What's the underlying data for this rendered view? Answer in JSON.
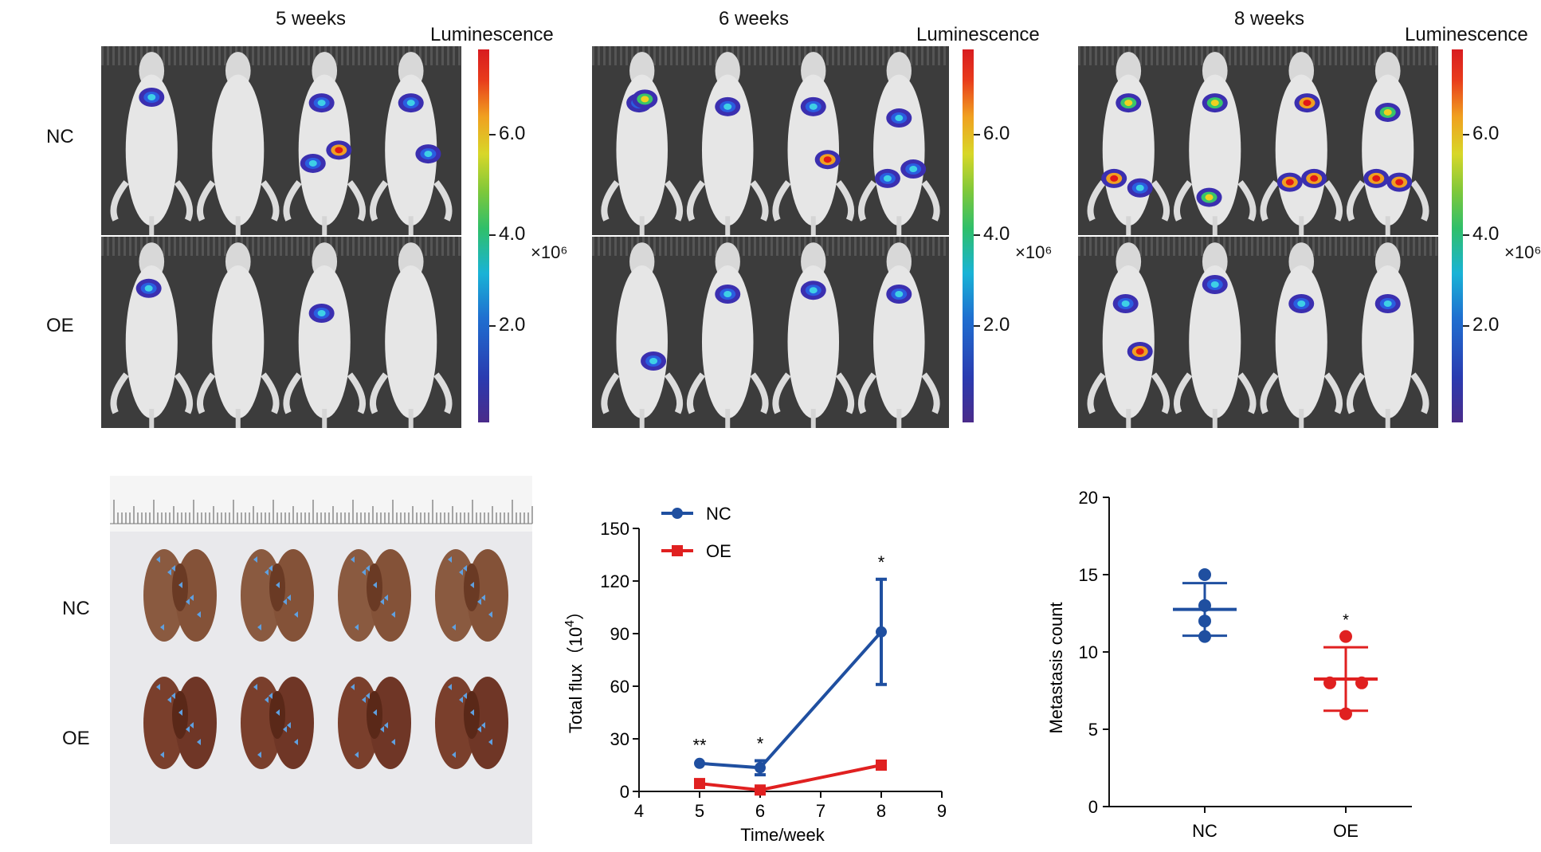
{
  "imaging": {
    "groups": [
      "NC",
      "OE"
    ],
    "columns": [
      {
        "title": "5 weeks",
        "lum_label": "Luminescence",
        "ticks": [
          "6.0",
          "4.0",
          "2.0"
        ],
        "unit": "×10⁶"
      },
      {
        "title": "6 weeks",
        "lum_label": "Luminescence",
        "ticks": [
          "6.0",
          "4.0",
          "2.0"
        ],
        "unit": "×10⁶"
      },
      {
        "title": "8 weeks",
        "lum_label": "Luminescence",
        "ticks": [
          "6.0",
          "4.0",
          "2.0"
        ],
        "unit": "×10⁶"
      }
    ]
  },
  "lung_photo": {
    "groups": [
      "NC",
      "OE"
    ]
  },
  "chart_data": [
    {
      "type": "line",
      "title": "",
      "xlabel": "Time/week",
      "ylabel": "Total flux（×10⁴）",
      "ylabel_main": "Total flux（10",
      "ylabel_sup": "4",
      "ylabel_close": "）",
      "xlim": [
        4,
        9
      ],
      "ylim": [
        0,
        150
      ],
      "xticks": [
        "4",
        "5",
        "6",
        "7",
        "8",
        "9"
      ],
      "yticks": [
        "0",
        "30",
        "60",
        "90",
        "120",
        "150"
      ],
      "x": [
        5,
        6,
        8
      ],
      "series": [
        {
          "name": "NC",
          "color": "#1f4fa0",
          "marker": "circle",
          "values": [
            16,
            13.5,
            91
          ],
          "error": [
            0.5,
            4,
            30
          ]
        },
        {
          "name": "OE",
          "color": "#e02020",
          "marker": "square",
          "values": [
            4.5,
            0.8,
            15
          ],
          "error": [
            0.3,
            0.3,
            0.5
          ]
        }
      ],
      "annotations": [
        {
          "x": 5,
          "text": "**"
        },
        {
          "x": 6,
          "text": "*"
        },
        {
          "x": 8,
          "text": "*"
        }
      ],
      "legend": "top-left"
    },
    {
      "type": "scatter",
      "title": "",
      "xlabel": "",
      "ylabel": "Metastasis count",
      "ylim": [
        0,
        20
      ],
      "yticks": [
        "0",
        "5",
        "10",
        "15",
        "20"
      ],
      "categories": [
        "NC",
        "OE"
      ],
      "series": [
        {
          "name": "NC",
          "color": "#1f4fa0",
          "points": [
            15,
            13,
            12,
            11
          ],
          "mean": 12.75,
          "sd": 1.7
        },
        {
          "name": "OE",
          "color": "#e02020",
          "points": [
            11,
            8,
            8,
            6
          ],
          "mean": 8.25,
          "sd": 2.05
        }
      ],
      "annotations": [
        {
          "category": "OE",
          "text": "*"
        }
      ]
    }
  ]
}
